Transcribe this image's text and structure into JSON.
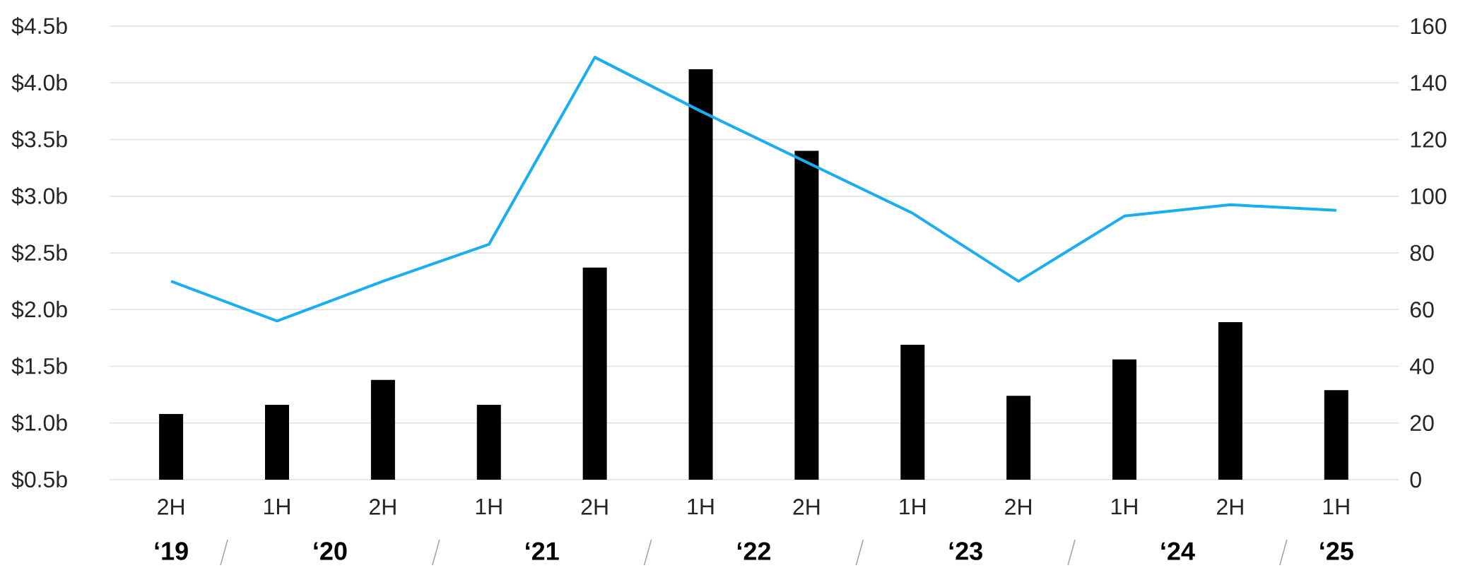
{
  "chart_data": {
    "type": "bar",
    "categories": [
      "2H",
      "1H",
      "2H",
      "1H",
      "2H",
      "1H",
      "2H",
      "1H",
      "2H",
      "1H",
      "2H",
      "1H"
    ],
    "series": [
      {
        "color": "#000000",
        "values": [
          1.08,
          1.16,
          1.38,
          1.16,
          2.37,
          4.12,
          3.4,
          1.69,
          1.24,
          1.56,
          1.89,
          1.29
        ]
      },
      {
        "type": "line",
        "axis": "y2",
        "color": "#1aaef0",
        "values": [
          70,
          56,
          70,
          83,
          149,
          130,
          112,
          94,
          70,
          93,
          97,
          95
        ]
      }
    ],
    "ylim": [
      0.5,
      4.5
    ],
    "yticks": [
      {
        "value": 0.5,
        "label": "$0.5b"
      },
      {
        "value": 1.0,
        "label": "$1.0b"
      },
      {
        "value": 1.5,
        "label": "$1.5b"
      },
      {
        "value": 2.0,
        "label": "$2.0b"
      },
      {
        "value": 2.5,
        "label": "$2.5b"
      },
      {
        "value": 3.0,
        "label": "$3.0b"
      },
      {
        "value": 3.5,
        "label": "$3.5b"
      },
      {
        "value": 4.0,
        "label": "$4.0b"
      },
      {
        "value": 4.5,
        "label": "$4.5b"
      }
    ],
    "y2lim": [
      0,
      160
    ],
    "y2ticks": [
      0,
      20,
      40,
      60,
      80,
      100,
      120,
      140,
      160
    ],
    "grid": "y",
    "annotations": [
      "‘19",
      "‘20",
      "‘21",
      "‘22",
      "‘23",
      "‘24",
      "‘25"
    ]
  }
}
